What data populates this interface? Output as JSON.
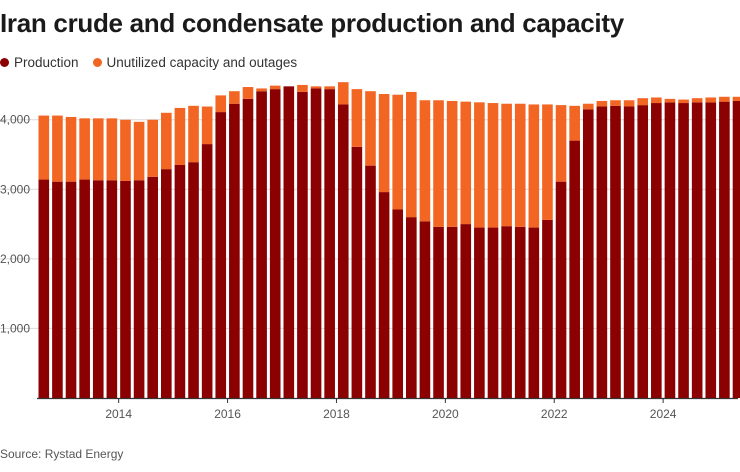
{
  "colors": {
    "production": "#8b0000",
    "unutilized": "#f26522",
    "grid": "#d9d9d9",
    "axis": "#333333"
  },
  "chart_data": {
    "type": "bar",
    "stacked": true,
    "title": "Iran crude and condensate production and capacity",
    "ylim": [
      0,
      4600
    ],
    "yticks": [
      1000,
      2000,
      3000,
      4000
    ],
    "ytick_labels": [
      "1,000",
      "2,000",
      "3,000",
      "4,000"
    ],
    "x_start": 2013.0,
    "x_end": 2025.875,
    "quarter_width": 0.25,
    "xticks": [
      2014,
      2016,
      2018,
      2020,
      2022,
      2024
    ],
    "series": [
      {
        "name": "Production",
        "values": [
          3140,
          3110,
          3110,
          3140,
          3130,
          3130,
          3120,
          3130,
          3180,
          3290,
          3350,
          3390,
          3650,
          4110,
          4230,
          4300,
          4410,
          4440,
          4480,
          4400,
          4450,
          4440,
          4220,
          3610,
          3340,
          2960,
          2710,
          2600,
          2540,
          2460,
          2460,
          2500,
          2450,
          2450,
          2470,
          2460,
          2450,
          2560,
          3110,
          3700,
          4150,
          4190,
          4200,
          4190,
          4210,
          4240,
          4250,
          4240,
          4250,
          4250,
          4260,
          4270
        ]
      },
      {
        "name": "Unutilized capacity and outages",
        "values": [
          920,
          950,
          930,
          880,
          890,
          890,
          880,
          840,
          820,
          810,
          820,
          810,
          540,
          240,
          180,
          170,
          40,
          50,
          0,
          100,
          30,
          40,
          320,
          830,
          1070,
          1410,
          1650,
          1800,
          1740,
          1820,
          1810,
          1760,
          1800,
          1790,
          1760,
          1770,
          1770,
          1660,
          1100,
          500,
          80,
          80,
          80,
          90,
          100,
          80,
          50,
          50,
          60,
          70,
          70,
          60
        ]
      }
    ]
  },
  "legend": {
    "production_label": "Production",
    "unutilized_label": "Unutilized capacity and outages"
  },
  "source": "Source: Rystad Energy"
}
